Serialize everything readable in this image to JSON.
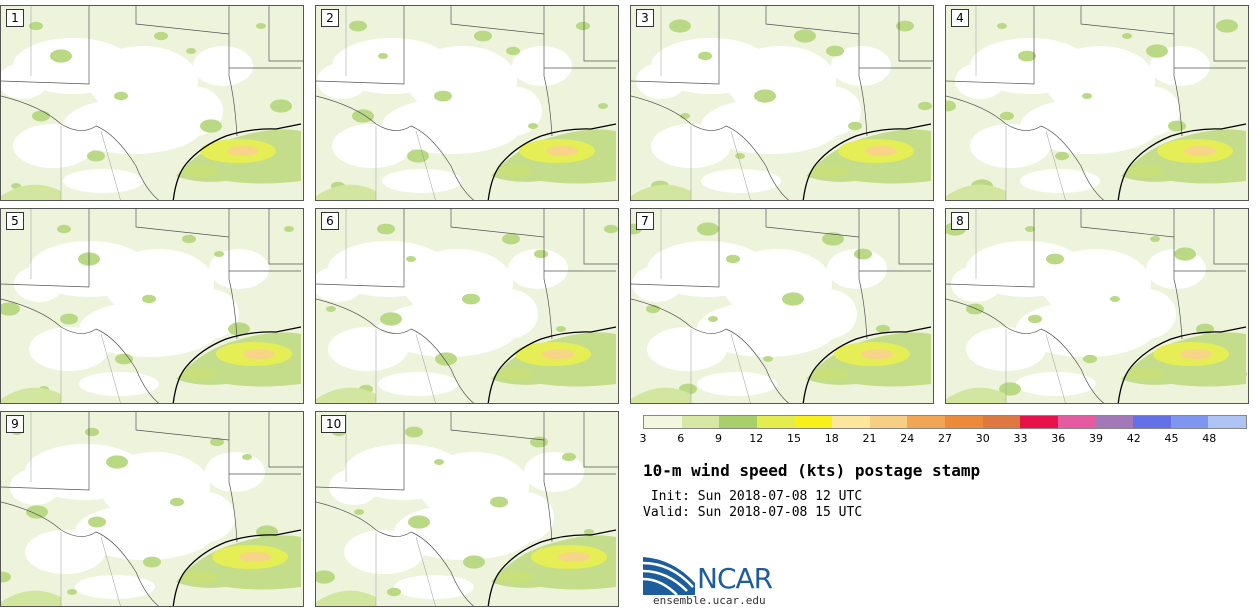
{
  "panels": [
    {
      "label": "1"
    },
    {
      "label": "2"
    },
    {
      "label": "3"
    },
    {
      "label": "4"
    },
    {
      "label": "5"
    },
    {
      "label": "6"
    },
    {
      "label": "7"
    },
    {
      "label": "8"
    },
    {
      "label": "9"
    },
    {
      "label": "10"
    }
  ],
  "colorbar": {
    "colors": [
      "#f2f7de",
      "#d6e8a4",
      "#a9cf6a",
      "#e3ee4e",
      "#f9ef1a",
      "#fce69c",
      "#f6cf85",
      "#f0a655",
      "#ea8a3a",
      "#dd7840",
      "#e8124a",
      "#e65aa0",
      "#a378b8",
      "#6470e8",
      "#7e96f0",
      "#aec4f4"
    ],
    "ticks": [
      "3",
      "6",
      "9",
      "12",
      "15",
      "18",
      "21",
      "24",
      "27",
      "30",
      "33",
      "36",
      "39",
      "42",
      "45",
      "48"
    ]
  },
  "title": "10-m wind speed (kts) postage stamp",
  "init": " Init: Sun 2018-07-08 12 UTC",
  "valid": "Valid: Sun 2018-07-08 15 UTC",
  "logo_text": "NCAR",
  "site": "ensemble.ucar.edu"
}
